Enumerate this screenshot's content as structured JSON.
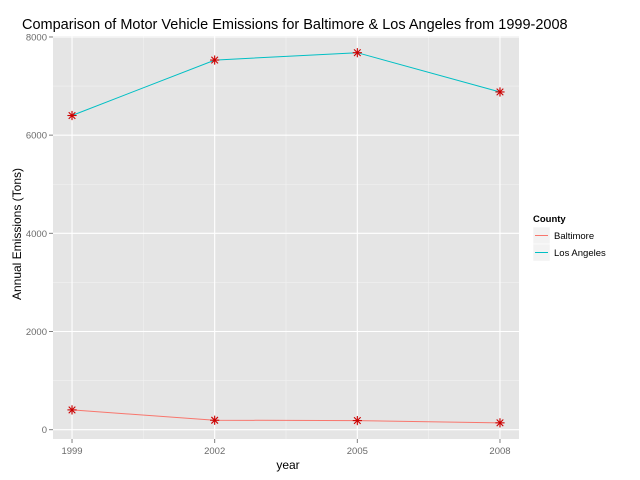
{
  "chart_data": {
    "type": "line",
    "title": "Comparison of Motor Vehicle Emissions for Baltimore & Los Angeles from 1999-2008",
    "xlabel": "year",
    "ylabel": "Annual Emissions (Tons)",
    "x": [
      1999,
      2002,
      2005,
      2008
    ],
    "x_ticks": [
      "1999",
      "2002",
      "2005",
      "2008"
    ],
    "y_ticks": [
      0,
      2000,
      4000,
      6000,
      8000
    ],
    "y_tick_labels": [
      "0",
      "2000",
      "4000",
      "6000",
      "8000"
    ],
    "xlim": [
      1998.6,
      2008.4
    ],
    "ylim": [
      -190,
      8020
    ],
    "grid": true,
    "legend": {
      "title": "County",
      "position": "right"
    },
    "marker": "asterisk",
    "marker_color": "#cc0000",
    "background_color": "#e5e5e5",
    "series": [
      {
        "name": "Baltimore",
        "color": "#f8766d",
        "values": [
          403,
          192,
          185,
          139
        ]
      },
      {
        "name": "Los Angeles",
        "color": "#00bfc4",
        "values": [
          6400,
          7530,
          7680,
          6880
        ]
      }
    ]
  }
}
